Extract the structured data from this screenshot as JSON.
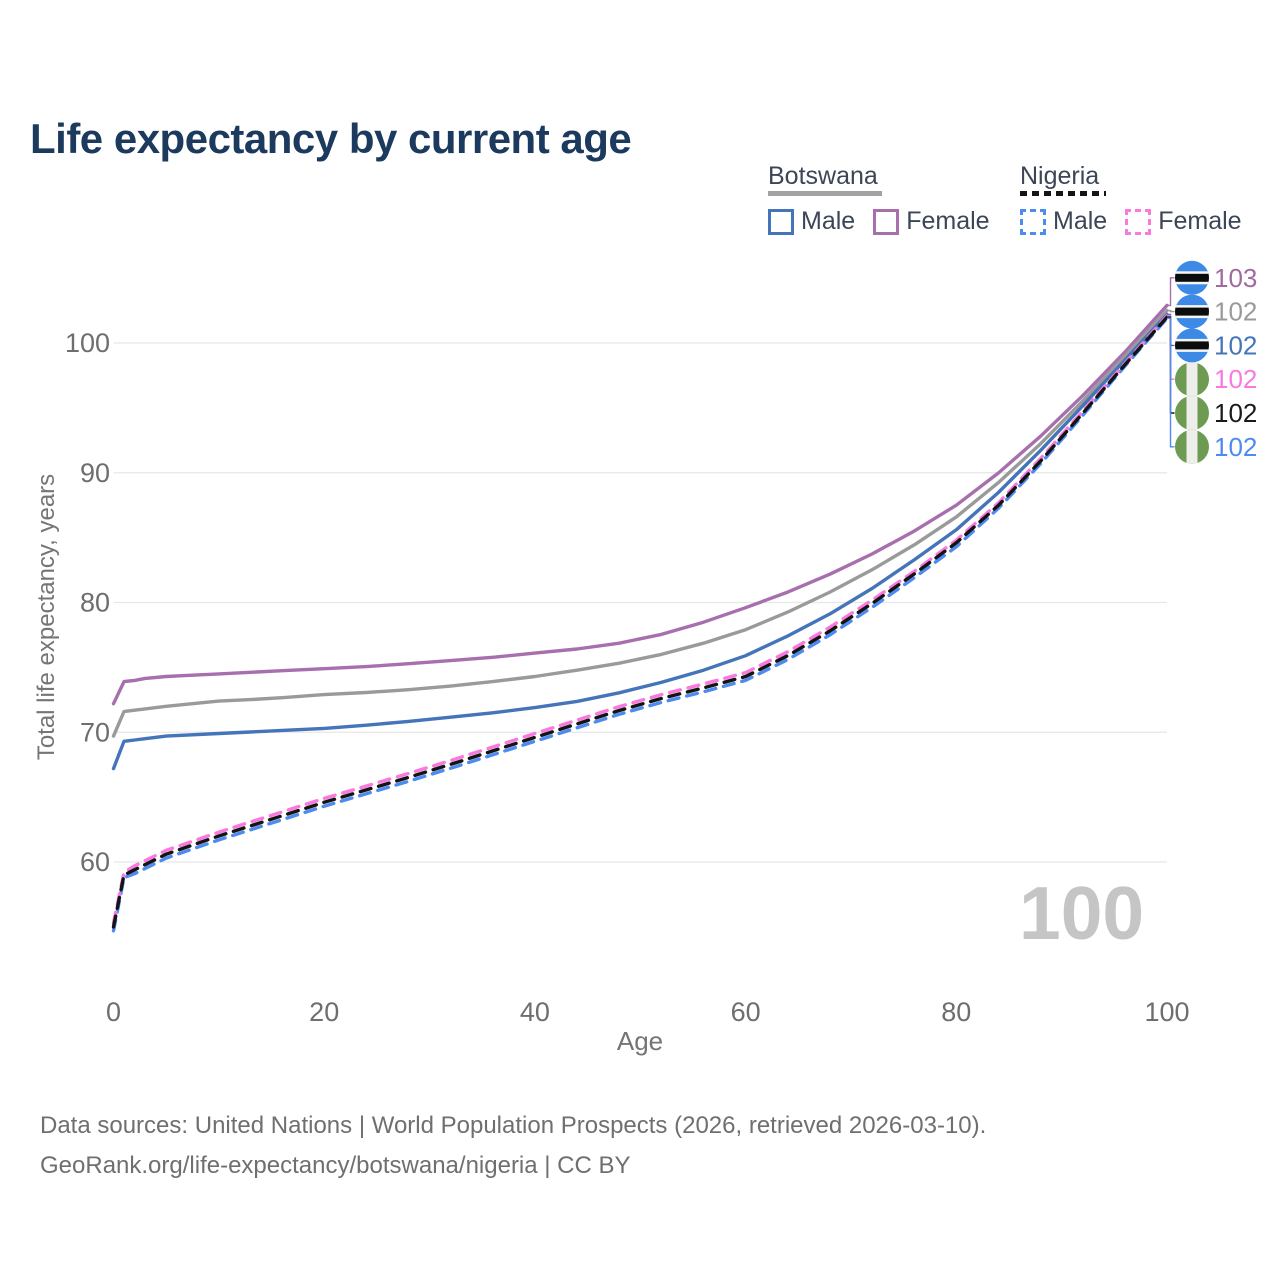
{
  "title": "Life expectancy by current age",
  "legend": {
    "groups": [
      {
        "label": "Botswana",
        "line_style": "solid",
        "underline_color": "#a3a3a3",
        "items": [
          {
            "label": "Male",
            "color": "#4474b9",
            "dashed": false
          },
          {
            "label": "Female",
            "color": "#a76fad",
            "dashed": false
          }
        ]
      },
      {
        "label": "Nigeria",
        "line_style": "dashed",
        "underline_color": "#141414",
        "items": [
          {
            "label": "Male",
            "color": "#4d8bf0",
            "dashed": true
          },
          {
            "label": "Female",
            "color": "#fb79df",
            "dashed": true
          }
        ]
      }
    ]
  },
  "watermark": "100",
  "footer": {
    "line1": "Data sources: United Nations | World Population Prospects (2026, retrieved 2026-03-10).",
    "line2": "GeoRank.org/life-expectancy/botswana/nigeria | CC BY"
  },
  "chart_data": {
    "type": "line",
    "title": "Life expectancy by current age",
    "xlabel": "Age",
    "ylabel": "Total life expectancy, years",
    "xlim": [
      0,
      100
    ],
    "ylim": [
      54,
      104
    ],
    "xticks": [
      0,
      20,
      40,
      60,
      80,
      100
    ],
    "yticks": [
      60,
      70,
      80,
      90,
      100
    ],
    "grid": "horizontal",
    "gridline_color": "#e7e7e7",
    "tick_label_color": "#6e6e6e",
    "x": [
      0,
      1,
      2,
      3,
      5,
      7,
      10,
      13,
      16,
      20,
      24,
      28,
      32,
      36,
      40,
      44,
      48,
      52,
      56,
      60,
      64,
      68,
      72,
      76,
      80,
      84,
      88,
      92,
      96,
      100
    ],
    "series": [
      {
        "name": "Botswana Female",
        "country": "Botswana",
        "sex": "Female",
        "color": "#a76fad",
        "dashed": false,
        "flag": "botswana",
        "end_label": "103",
        "end_label_color": "#a0699f",
        "values": [
          72.2,
          73.9,
          74.0,
          74.15,
          74.3,
          74.38,
          74.5,
          74.62,
          74.74,
          74.9,
          75.06,
          75.28,
          75.52,
          75.78,
          76.1,
          76.42,
          76.86,
          77.54,
          78.48,
          79.6,
          80.8,
          82.18,
          83.74,
          85.5,
          87.5,
          89.98,
          92.82,
          95.94,
          99.3,
          102.9
        ]
      },
      {
        "name": "Botswana",
        "country": "Botswana",
        "sex": "Both",
        "color": "#9a9a9a",
        "dashed": false,
        "flag": "botswana",
        "end_label": "102",
        "end_label_color": "#9a9a9a",
        "values": [
          69.7,
          71.6,
          71.7,
          71.8,
          72.0,
          72.16,
          72.4,
          72.52,
          72.66,
          72.9,
          73.06,
          73.28,
          73.56,
          73.9,
          74.3,
          74.78,
          75.32,
          76.0,
          76.86,
          77.9,
          79.26,
          80.8,
          82.52,
          84.44,
          86.6,
          89.24,
          92.24,
          95.52,
          98.98,
          102.5
        ]
      },
      {
        "name": "Botswana Male",
        "country": "Botswana",
        "sex": "Male",
        "color": "#4474b9",
        "dashed": false,
        "flag": "botswana",
        "end_label": "102",
        "end_label_color": "#4474b9",
        "values": [
          67.2,
          69.3,
          69.4,
          69.5,
          69.7,
          69.78,
          69.9,
          70.02,
          70.14,
          70.3,
          70.54,
          70.84,
          71.16,
          71.5,
          71.9,
          72.38,
          73.04,
          73.84,
          74.78,
          75.9,
          77.42,
          79.12,
          81.08,
          83.28,
          85.6,
          88.48,
          91.72,
          95.16,
          98.68,
          102.2
        ]
      },
      {
        "name": "Nigeria Female",
        "country": "Nigeria",
        "sex": "Female",
        "color": "#fb79df",
        "dashed": true,
        "flag": "nigeria",
        "end_label": "102",
        "end_label_color": "#fb79df",
        "values": [
          55.3,
          59.2,
          59.7,
          60.1,
          60.9,
          61.46,
          62.3,
          63.08,
          63.86,
          64.9,
          65.86,
          66.82,
          67.82,
          68.86,
          69.9,
          70.94,
          71.98,
          72.9,
          73.72,
          74.6,
          76.2,
          78.1,
          80.18,
          82.4,
          84.8,
          87.68,
          91.1,
          94.74,
          98.42,
          102.1
        ]
      },
      {
        "name": "Nigeria",
        "country": "Nigeria",
        "sex": "Both",
        "color": "#141414",
        "dashed": true,
        "flag": "nigeria",
        "end_label": "102",
        "end_label_color": "#1a1a1a",
        "values": [
          55.0,
          59.0,
          59.4,
          59.8,
          60.6,
          61.16,
          62.0,
          62.78,
          63.56,
          64.6,
          65.56,
          66.52,
          67.52,
          68.56,
          69.6,
          70.64,
          71.68,
          72.6,
          73.42,
          74.3,
          75.9,
          77.8,
          79.92,
          82.2,
          84.6,
          87.48,
          90.9,
          94.58,
          98.32,
          102.0
        ]
      },
      {
        "name": "Nigeria Male",
        "country": "Nigeria",
        "sex": "Male",
        "color": "#4d8bf0",
        "dashed": true,
        "flag": "nigeria",
        "end_label": "102",
        "end_label_color": "#4d8bf0",
        "values": [
          54.7,
          58.8,
          59.1,
          59.5,
          60.3,
          60.86,
          61.7,
          62.48,
          63.26,
          64.3,
          65.26,
          66.22,
          67.22,
          68.26,
          69.3,
          70.34,
          71.38,
          72.3,
          73.12,
          74.0,
          75.6,
          77.5,
          79.62,
          81.9,
          84.3,
          87.26,
          90.7,
          94.42,
          98.22,
          101.9
        ]
      }
    ],
    "legend_position": "top-right",
    "flag_colors": {
      "botswana": {
        "bg": "#3d89e6",
        "band": "#0c0c0c",
        "edge": "#f5f5f5"
      },
      "nigeria": {
        "bg": "#6d9b52",
        "stripe": "#eeeeea"
      }
    }
  }
}
